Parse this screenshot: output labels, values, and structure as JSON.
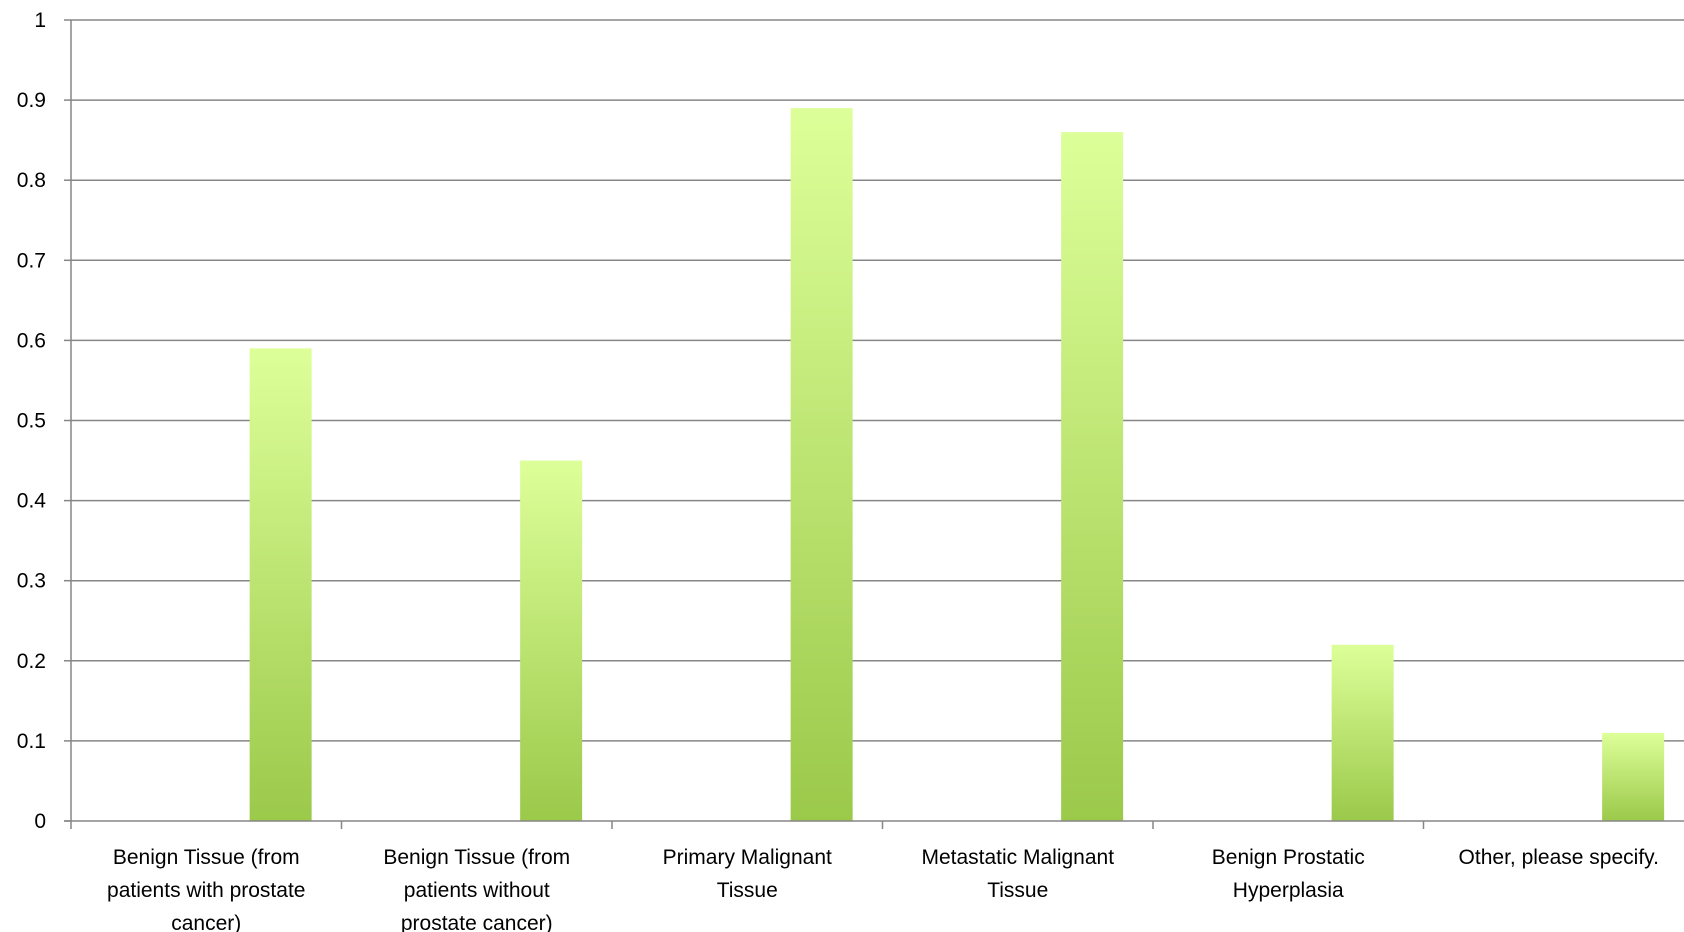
{
  "chart_data": {
    "type": "bar",
    "title": "",
    "xlabel": "",
    "ylabel": "",
    "ylim": [
      0,
      1
    ],
    "yticks": [
      0,
      0.1,
      0.2,
      0.3,
      0.4,
      0.5,
      0.6,
      0.7,
      0.8,
      0.9,
      1
    ],
    "ytick_labels": [
      "0",
      "0.1",
      "0.2",
      "0.3",
      "0.4",
      "0.5",
      "0.6",
      "0.7",
      "0.8",
      "0.9",
      "1"
    ],
    "grid": true,
    "legend": "none",
    "categories": [
      "Benign Tissue (from patients with prostate cancer)",
      "Benign Tissue (from patients without prostate cancer)",
      "Primary Malignant Tissue",
      "Metastatic Malignant Tissue",
      "Benign Prostatic Hyperplasia",
      "Other, please specify."
    ],
    "category_label_lines": [
      [
        "Benign Tissue (from",
        "patients with prostate",
        "cancer)"
      ],
      [
        "Benign Tissue (from",
        "patients without",
        "prostate cancer)"
      ],
      [
        "Primary Malignant",
        "Tissue"
      ],
      [
        "Metastatic Malignant",
        "Tissue"
      ],
      [
        "Benign Prostatic",
        "Hyperplasia"
      ],
      [
        "Other, please specify."
      ]
    ],
    "values": [
      0.59,
      0.45,
      0.89,
      0.86,
      0.22,
      0.11
    ],
    "colors": {
      "bar_top": "#ddff99",
      "bar_bottom": "#9bc94a",
      "grid": "#868686",
      "axis": "#868686"
    }
  }
}
